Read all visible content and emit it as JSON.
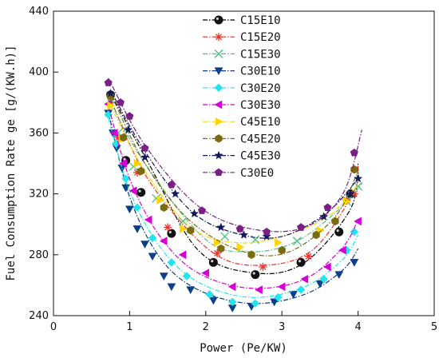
{
  "chart_data": {
    "type": "scatter",
    "title": "",
    "xlabel": "Power (Pe/KW)",
    "ylabel": "Fuel Consumption Rate ge [g/(KW.h)]",
    "xlim": [
      0,
      5
    ],
    "ylim": [
      240,
      440
    ],
    "xticks": [
      "0",
      "1",
      "2",
      "3",
      "4",
      "5"
    ],
    "yticks": [
      "240",
      "280",
      "320",
      "360",
      "400",
      "440"
    ],
    "grid": false,
    "legend_position": "top-center",
    "series": [
      {
        "name": "C15E10",
        "color": "#000000",
        "marker": "ball",
        "fit": [
          [
            0.75,
            386
          ],
          [
            1.25,
            340
          ],
          [
            1.9,
            283
          ],
          [
            2.65,
            268
          ],
          [
            3.3,
            275
          ],
          [
            3.9,
            310
          ],
          [
            4.0,
            340
          ]
        ],
        "points": [
          [
            0.75,
            385
          ],
          [
            0.95,
            342
          ],
          [
            1.15,
            321
          ],
          [
            1.55,
            294
          ],
          [
            2.1,
            275
          ],
          [
            2.65,
            267
          ],
          [
            3.25,
            275
          ],
          [
            3.75,
            295
          ],
          [
            3.9,
            320
          ]
        ]
      },
      {
        "name": "C15E20",
        "color": "#e8342c",
        "marker": "asterisk",
        "fit": [
          [
            0.75,
            382
          ],
          [
            1.25,
            329
          ],
          [
            2.05,
            283
          ],
          [
            2.7,
            273
          ],
          [
            3.4,
            283
          ],
          [
            3.95,
            322
          ],
          [
            4.0,
            339
          ]
        ],
        "points": [
          [
            0.75,
            380
          ],
          [
            0.85,
            357
          ],
          [
            1.1,
            334
          ],
          [
            1.5,
            298
          ],
          [
            2.15,
            281
          ],
          [
            2.75,
            272
          ],
          [
            3.35,
            279
          ],
          [
            3.85,
            316
          ],
          [
            3.95,
            320
          ]
        ]
      },
      {
        "name": "C15E30",
        "color": "#52c08a",
        "marker": "x",
        "fit": [
          [
            0.75,
            380
          ],
          [
            1.2,
            340
          ],
          [
            2.0,
            290
          ],
          [
            2.6,
            282
          ],
          [
            3.2,
            289
          ],
          [
            3.8,
            312
          ],
          [
            4.05,
            327
          ]
        ],
        "points": [
          [
            0.75,
            382
          ],
          [
            0.85,
            360
          ],
          [
            1.05,
            338
          ],
          [
            1.35,
            317
          ],
          [
            1.7,
            302
          ],
          [
            2.25,
            292
          ],
          [
            2.65,
            290
          ],
          [
            3.2,
            289
          ],
          [
            3.85,
            315
          ],
          [
            4.0,
            325
          ]
        ]
      },
      {
        "name": "C30E10",
        "color": "#0b3f8a",
        "marker": "tri-down",
        "fit": [
          [
            0.72,
            374
          ],
          [
            1.0,
            318
          ],
          [
            1.4,
            278
          ],
          [
            1.9,
            257
          ],
          [
            2.6,
            248
          ],
          [
            3.3,
            254
          ],
          [
            3.8,
            270
          ],
          [
            4.0,
            284
          ]
        ],
        "points": [
          [
            0.72,
            373
          ],
          [
            0.78,
            360
          ],
          [
            0.83,
            350
          ],
          [
            0.9,
            337
          ],
          [
            0.95,
            324
          ],
          [
            1.0,
            310
          ],
          [
            1.1,
            297
          ],
          [
            1.2,
            287
          ],
          [
            1.3,
            279
          ],
          [
            1.45,
            266
          ],
          [
            1.55,
            259
          ],
          [
            1.8,
            257
          ],
          [
            2.1,
            250
          ],
          [
            2.35,
            245
          ],
          [
            2.6,
            246
          ],
          [
            2.9,
            249
          ],
          [
            3.15,
            254
          ],
          [
            3.5,
            261
          ],
          [
            3.75,
            267
          ],
          [
            3.95,
            275
          ]
        ]
      },
      {
        "name": "C30E20",
        "color": "#22e4ec",
        "marker": "diamond",
        "fit": [
          [
            0.72,
            370
          ],
          [
            1.0,
            322
          ],
          [
            1.4,
            285
          ],
          [
            1.9,
            262
          ],
          [
            2.6,
            252
          ],
          [
            3.3,
            259
          ],
          [
            3.8,
            277
          ],
          [
            4.0,
            293
          ]
        ],
        "points": [
          [
            0.72,
            372
          ],
          [
            0.82,
            353
          ],
          [
            0.95,
            330
          ],
          [
            1.1,
            311
          ],
          [
            1.3,
            291
          ],
          [
            1.55,
            275
          ],
          [
            1.75,
            266
          ],
          [
            2.05,
            254
          ],
          [
            2.35,
            249
          ],
          [
            2.65,
            248
          ],
          [
            2.95,
            252
          ],
          [
            3.25,
            257
          ],
          [
            3.55,
            264
          ],
          [
            3.85,
            283
          ],
          [
            3.95,
            295
          ]
        ]
      },
      {
        "name": "C30E30",
        "color": "#d500d6",
        "marker": "tri-left",
        "fit": [
          [
            0.72,
            378
          ],
          [
            1.0,
            330
          ],
          [
            1.4,
            292
          ],
          [
            1.9,
            268
          ],
          [
            2.6,
            258
          ],
          [
            3.3,
            264
          ],
          [
            3.8,
            285
          ],
          [
            4.0,
            303
          ]
        ],
        "points": [
          [
            0.72,
            379
          ],
          [
            0.8,
            360
          ],
          [
            0.92,
            340
          ],
          [
            1.05,
            322
          ],
          [
            1.25,
            303
          ],
          [
            1.45,
            289
          ],
          [
            1.7,
            280
          ],
          [
            2.0,
            268
          ],
          [
            2.35,
            259
          ],
          [
            2.7,
            257
          ],
          [
            3.0,
            259
          ],
          [
            3.3,
            264
          ],
          [
            3.6,
            272
          ],
          [
            3.8,
            283
          ],
          [
            4.0,
            302
          ]
        ]
      },
      {
        "name": "C45E10",
        "color": "#ffd400",
        "marker": "tri-right",
        "fit": [
          [
            0.75,
            378
          ],
          [
            1.2,
            335
          ],
          [
            1.8,
            298
          ],
          [
            2.4,
            288
          ],
          [
            3.0,
            292
          ],
          [
            3.6,
            305
          ],
          [
            4.0,
            326
          ]
        ],
        "points": [
          [
            0.75,
            378
          ],
          [
            0.9,
            356
          ],
          [
            1.1,
            340
          ],
          [
            1.4,
            316
          ],
          [
            1.7,
            297
          ],
          [
            2.15,
            288
          ],
          [
            2.45,
            285
          ],
          [
            2.95,
            288
          ],
          [
            3.5,
            296
          ],
          [
            3.85,
            315
          ]
        ]
      },
      {
        "name": "C45E20",
        "color": "#7a6a10",
        "marker": "hexagon",
        "fit": [
          [
            0.75,
            386
          ],
          [
            1.2,
            340
          ],
          [
            1.8,
            302
          ],
          [
            2.5,
            282
          ],
          [
            3.1,
            282
          ],
          [
            3.7,
            305
          ],
          [
            4.0,
            335
          ]
        ],
        "points": [
          [
            0.75,
            384
          ],
          [
            0.92,
            357
          ],
          [
            1.15,
            335
          ],
          [
            1.45,
            311
          ],
          [
            1.8,
            296
          ],
          [
            2.2,
            284
          ],
          [
            2.6,
            280
          ],
          [
            3.0,
            283
          ],
          [
            3.45,
            293
          ],
          [
            3.7,
            302
          ],
          [
            3.95,
            336
          ]
        ]
      },
      {
        "name": "C45E30",
        "color": "#141a5a",
        "marker": "star",
        "fit": [
          [
            0.75,
            388
          ],
          [
            1.2,
            348
          ],
          [
            1.8,
            309
          ],
          [
            2.4,
            294
          ],
          [
            3.0,
            292
          ],
          [
            3.6,
            308
          ],
          [
            4.0,
            330
          ]
        ],
        "points": [
          [
            0.75,
            386
          ],
          [
            0.98,
            362
          ],
          [
            1.2,
            344
          ],
          [
            1.6,
            320
          ],
          [
            1.85,
            307
          ],
          [
            2.2,
            298
          ],
          [
            2.5,
            293
          ],
          [
            2.8,
            292
          ],
          [
            3.25,
            298
          ],
          [
            3.55,
            305
          ],
          [
            3.9,
            320
          ],
          [
            4.0,
            330
          ]
        ]
      },
      {
        "name": "C30E0",
        "color": "#7a1f86",
        "marker": "pentagon",
        "fit": [
          [
            0.72,
            396
          ],
          [
            1.2,
            352
          ],
          [
            1.9,
            312
          ],
          [
            2.6,
            297
          ],
          [
            3.3,
            298
          ],
          [
            3.8,
            320
          ],
          [
            4.05,
            362
          ]
        ],
        "points": [
          [
            0.72,
            393
          ],
          [
            0.88,
            380
          ],
          [
            1.0,
            371
          ],
          [
            1.2,
            350
          ],
          [
            1.55,
            326
          ],
          [
            1.95,
            309
          ],
          [
            2.45,
            297
          ],
          [
            2.8,
            295
          ],
          [
            3.25,
            298
          ],
          [
            3.6,
            311
          ],
          [
            3.95,
            347
          ]
        ]
      }
    ]
  }
}
